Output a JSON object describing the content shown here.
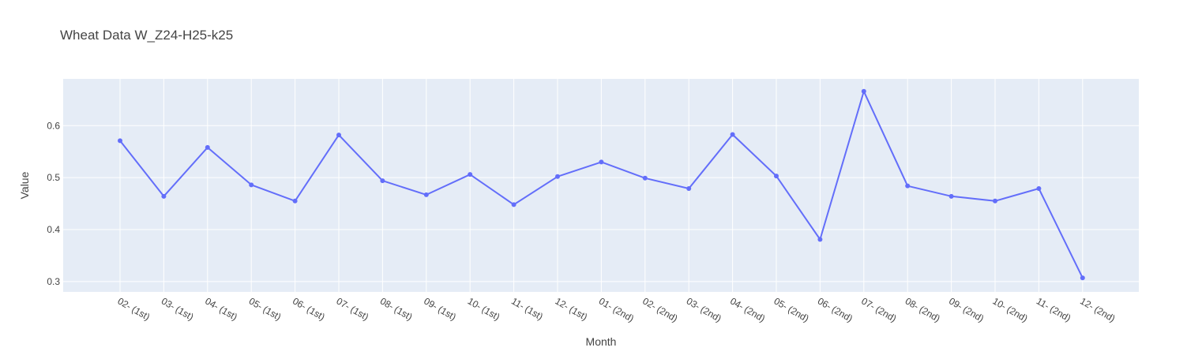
{
  "chart_data": {
    "type": "line",
    "title": "Wheat Data W_Z24-H25-k25",
    "xlabel": "Month",
    "ylabel": "Value",
    "categories": [
      "02- (1st)",
      "03- (1st)",
      "04- (1st)",
      "05- (1st)",
      "06- (1st)",
      "07- (1st)",
      "08- (1st)",
      "09- (1st)",
      "10- (1st)",
      "11- (1st)",
      "12- (1st)",
      "01- (2nd)",
      "02- (2nd)",
      "03- (2nd)",
      "04- (2nd)",
      "05- (2nd)",
      "06- (2nd)",
      "07- (2nd)",
      "08- (2nd)",
      "09- (2nd)",
      "10- (2nd)",
      "11- (2nd)",
      "12- (2nd)"
    ],
    "values": [
      0.571,
      0.464,
      0.558,
      0.486,
      0.455,
      0.582,
      0.494,
      0.467,
      0.506,
      0.448,
      0.502,
      0.53,
      0.499,
      0.479,
      0.583,
      0.503,
      0.381,
      0.666,
      0.484,
      0.464,
      0.455,
      0.479,
      0.307
    ],
    "ylim": [
      0.28,
      0.69
    ],
    "yticks": [
      0.3,
      0.4,
      0.5,
      0.6
    ],
    "ytick_labels": [
      "0.3",
      "0.4",
      "0.5",
      "0.6"
    ],
    "grid": true,
    "line_color": "#636efa",
    "plot_background": "#e5ecf6"
  }
}
